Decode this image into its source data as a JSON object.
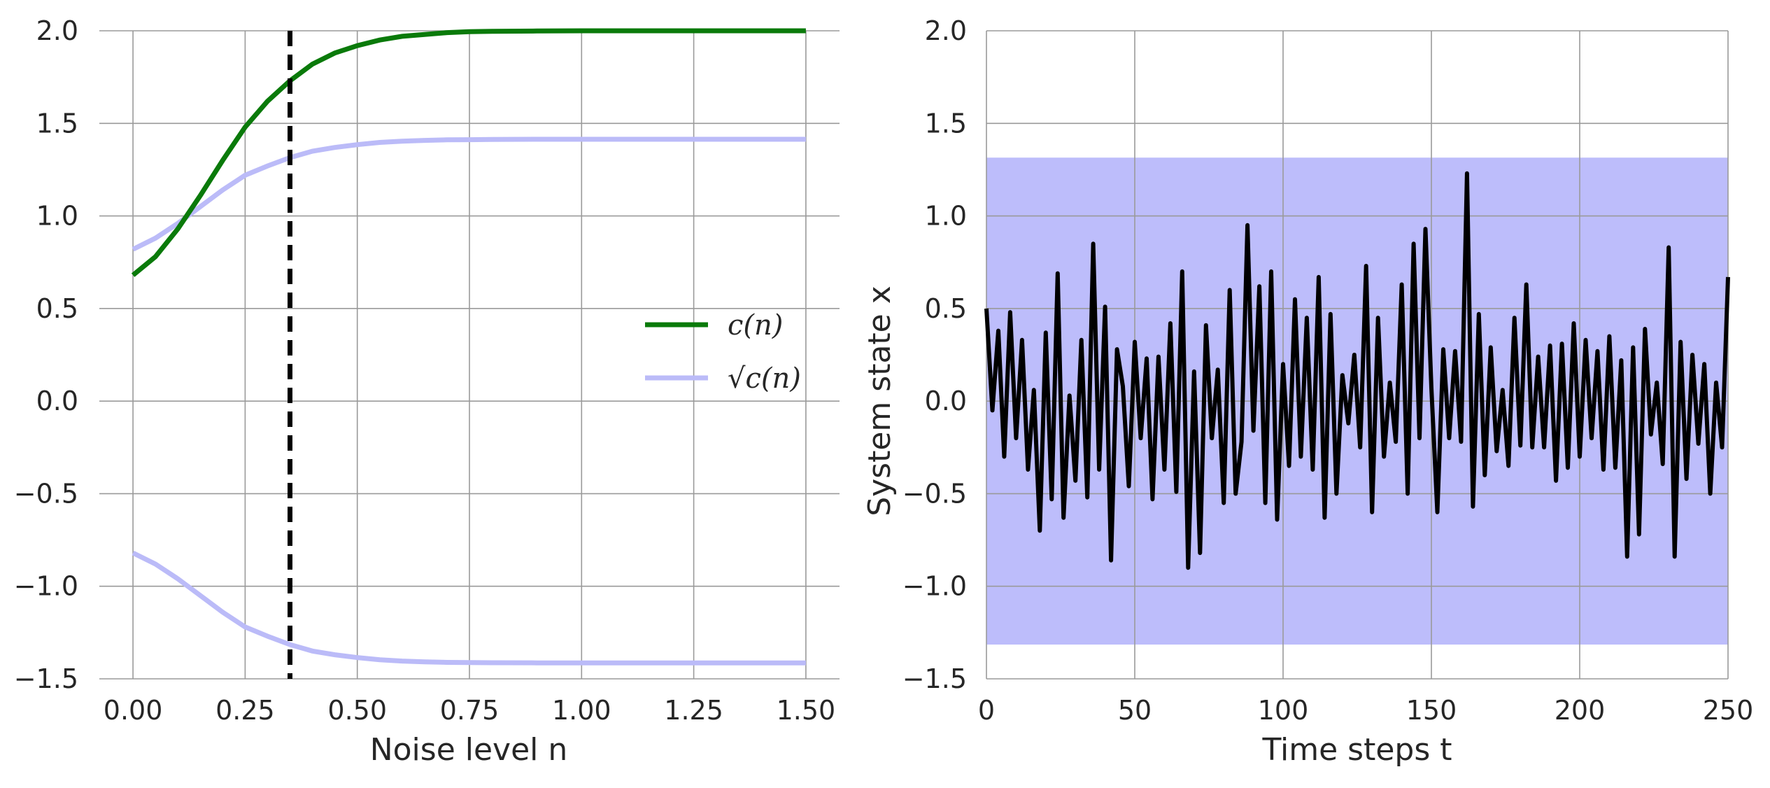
{
  "colors": {
    "c_curve": "#0a7a0a",
    "sqrt_curve": "#bbbbf8",
    "band": "#bdbdfb",
    "trajectory": "#000000",
    "vline": "#000000",
    "grid": "#9a9a9a"
  },
  "chart_data": [
    {
      "type": "line",
      "xlabel": "Noise level n",
      "ylabel": "",
      "xlim": [
        -0.075,
        1.575
      ],
      "ylim": [
        -1.5,
        2.0
      ],
      "xticks": [
        "0.00",
        "0.25",
        "0.50",
        "0.75",
        "1.00",
        "1.25",
        "1.50"
      ],
      "yticks": [
        "2.0",
        "1.5",
        "1.0",
        "0.5",
        "0.0",
        "−0.5",
        "−1.0",
        "−1.5"
      ],
      "grid": true,
      "legend": {
        "placement": "center-right",
        "entries": [
          "c(n)",
          "√c(n)"
        ]
      },
      "vline": {
        "x": 0.35,
        "style": "dashed"
      },
      "series": [
        {
          "name": "c(n)",
          "color": "#0a7a0a",
          "x": [
            0.0,
            0.05,
            0.1,
            0.15,
            0.2,
            0.25,
            0.3,
            0.35,
            0.4,
            0.45,
            0.5,
            0.55,
            0.6,
            0.65,
            0.7,
            0.75,
            0.8,
            0.9,
            1.0,
            1.1,
            1.2,
            1.3,
            1.4,
            1.5
          ],
          "y": [
            0.68,
            0.78,
            0.93,
            1.11,
            1.3,
            1.48,
            1.62,
            1.73,
            1.82,
            1.88,
            1.92,
            1.95,
            1.97,
            1.98,
            1.99,
            1.995,
            1.997,
            1.999,
            2.0,
            2.0,
            2.0,
            2.0,
            2.0,
            2.0
          ]
        },
        {
          "name": "√c(n)",
          "color": "#bbbbf8",
          "x": [
            0.0,
            0.05,
            0.1,
            0.15,
            0.2,
            0.25,
            0.3,
            0.35,
            0.4,
            0.45,
            0.5,
            0.55,
            0.6,
            0.65,
            0.7,
            0.75,
            0.8,
            0.9,
            1.0,
            1.1,
            1.2,
            1.3,
            1.4,
            1.5
          ],
          "y": [
            0.82,
            0.88,
            0.96,
            1.05,
            1.14,
            1.22,
            1.27,
            1.315,
            1.35,
            1.37,
            1.385,
            1.397,
            1.404,
            1.408,
            1.411,
            1.412,
            1.413,
            1.414,
            1.414,
            1.414,
            1.414,
            1.414,
            1.414,
            1.414
          ],
          "mirror": true
        }
      ]
    },
    {
      "type": "line",
      "xlabel": "Time steps t",
      "ylabel": "System state x",
      "xlim": [
        0,
        250
      ],
      "ylim": [
        -1.5,
        2.0
      ],
      "xticks": [
        "0",
        "50",
        "100",
        "150",
        "200",
        "250"
      ],
      "yticks": [
        "2.0",
        "1.5",
        "1.0",
        "0.5",
        "0.0",
        "−0.5",
        "−1.0",
        "−1.5"
      ],
      "grid": true,
      "band": {
        "ymin": -1.315,
        "ymax": 1.315
      },
      "series": [
        {
          "name": "",
          "color": "#000000",
          "x": [
            0,
            2,
            4,
            6,
            8,
            10,
            12,
            14,
            16,
            18,
            20,
            22,
            24,
            26,
            28,
            30,
            32,
            34,
            36,
            38,
            40,
            42,
            44,
            46,
            48,
            50,
            52,
            54,
            56,
            58,
            60,
            62,
            64,
            66,
            68,
            70,
            72,
            74,
            76,
            78,
            80,
            82,
            84,
            86,
            88,
            90,
            92,
            94,
            96,
            98,
            100,
            102,
            104,
            106,
            108,
            110,
            112,
            114,
            116,
            118,
            120,
            122,
            124,
            126,
            128,
            130,
            132,
            134,
            136,
            138,
            140,
            142,
            144,
            146,
            148,
            150,
            152,
            154,
            156,
            158,
            160,
            162,
            164,
            166,
            168,
            170,
            172,
            174,
            176,
            178,
            180,
            182,
            184,
            186,
            188,
            190,
            192,
            194,
            196,
            198,
            200,
            202,
            204,
            206,
            208,
            210,
            212,
            214,
            216,
            218,
            220,
            222,
            224,
            226,
            228,
            230,
            232,
            234,
            236,
            238,
            240,
            242,
            244,
            246,
            248,
            250
          ],
          "y": [
            0.5,
            -0.05,
            0.38,
            -0.3,
            0.48,
            -0.2,
            0.33,
            -0.37,
            0.06,
            -0.7,
            0.37,
            -0.53,
            0.69,
            -0.63,
            0.03,
            -0.43,
            0.33,
            -0.52,
            0.85,
            -0.37,
            0.51,
            -0.86,
            0.28,
            0.08,
            -0.46,
            0.32,
            -0.2,
            0.23,
            -0.53,
            0.24,
            -0.37,
            0.42,
            -0.49,
            0.7,
            -0.9,
            0.16,
            -0.82,
            0.41,
            -0.2,
            0.17,
            -0.55,
            0.6,
            -0.5,
            -0.22,
            0.95,
            -0.16,
            0.62,
            -0.55,
            0.7,
            -0.64,
            0.2,
            -0.35,
            0.55,
            -0.3,
            0.45,
            -0.37,
            0.67,
            -0.63,
            0.47,
            -0.5,
            0.14,
            -0.12,
            0.25,
            -0.25,
            0.73,
            -0.6,
            0.45,
            -0.3,
            0.1,
            -0.22,
            0.63,
            -0.5,
            0.85,
            -0.2,
            0.93,
            0.07,
            -0.6,
            0.28,
            -0.2,
            0.27,
            -0.22,
            1.23,
            -0.57,
            0.47,
            -0.4,
            0.29,
            -0.27,
            0.06,
            -0.35,
            0.45,
            -0.24,
            0.63,
            -0.25,
            0.24,
            -0.25,
            0.3,
            -0.43,
            0.31,
            -0.36,
            0.42,
            -0.3,
            0.33,
            -0.2,
            0.27,
            -0.37,
            0.35,
            -0.36,
            0.22,
            -0.84,
            0.29,
            -0.72,
            0.39,
            -0.18,
            0.1,
            -0.34,
            0.83,
            -0.84,
            0.32,
            -0.42,
            0.25,
            -0.23,
            0.2,
            -0.5,
            0.1,
            -0.25,
            0.67
          ]
        }
      ]
    }
  ]
}
